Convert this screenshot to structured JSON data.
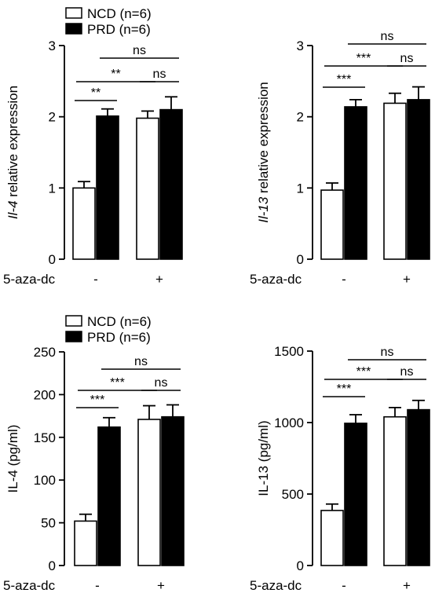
{
  "colors": {
    "ncd": "#ffffff",
    "prd": "#000000",
    "stroke": "#000000"
  },
  "chart_data": [
    {
      "type": "bar",
      "ylabel_italic": "Il-4",
      "ylabel_rest": " relative expression",
      "ylim": [
        0,
        3
      ],
      "yticks": [
        "0",
        "1",
        "2",
        "3"
      ],
      "treatment_label": "5-aza-dc",
      "categories": [
        "-",
        "+"
      ],
      "legend": [
        "NCD (n=6)",
        "PRD (n=6)"
      ],
      "series": [
        {
          "name": "NCD (n=6)",
          "values": [
            1.0,
            1.98
          ],
          "errors": [
            0.09,
            0.1
          ]
        },
        {
          "name": "PRD (n=6)",
          "values": [
            2.01,
            2.1
          ],
          "errors": [
            0.1,
            0.18
          ]
        }
      ],
      "annotations": [
        {
          "text": "**",
          "from": [
            0,
            0
          ],
          "to": [
            0,
            1
          ],
          "level": 0
        },
        {
          "text": "**",
          "from": [
            0,
            0
          ],
          "to": [
            1,
            0
          ],
          "level": 1
        },
        {
          "text": "ns",
          "from": [
            1,
            0
          ],
          "to": [
            1,
            1
          ],
          "level": 1
        },
        {
          "text": "ns",
          "from": [
            0,
            1
          ],
          "to": [
            1,
            1
          ],
          "level": 2
        }
      ]
    },
    {
      "type": "bar",
      "ylabel_italic": "Il-13",
      "ylabel_rest": " relative expression",
      "ylim": [
        0,
        3
      ],
      "yticks": [
        "0",
        "1",
        "2",
        "3"
      ],
      "treatment_label": "5-aza-dc",
      "categories": [
        "-",
        "+"
      ],
      "legend": [],
      "series": [
        {
          "name": "NCD (n=6)",
          "values": [
            0.97,
            2.19
          ],
          "errors": [
            0.1,
            0.14
          ]
        },
        {
          "name": "PRD (n=6)",
          "values": [
            2.14,
            2.24
          ],
          "errors": [
            0.1,
            0.18
          ]
        }
      ],
      "annotations": [
        {
          "text": "***",
          "from": [
            0,
            0
          ],
          "to": [
            0,
            1
          ],
          "level": 0
        },
        {
          "text": "***",
          "from": [
            0,
            0
          ],
          "to": [
            1,
            0
          ],
          "level": 1
        },
        {
          "text": "ns",
          "from": [
            1,
            0
          ],
          "to": [
            1,
            1
          ],
          "level": 1
        },
        {
          "text": "ns",
          "from": [
            0,
            1
          ],
          "to": [
            1,
            1
          ],
          "level": 2
        }
      ]
    },
    {
      "type": "bar",
      "ylabel_italic": "",
      "ylabel_rest": "IL-4 (pg/ml)",
      "ylim": [
        0,
        250
      ],
      "yticks": [
        "0",
        "50",
        "100",
        "150",
        "200",
        "250"
      ],
      "treatment_label": "5-aza-dc",
      "categories": [
        "-",
        "+"
      ],
      "legend": [
        "NCD (n=6)",
        "PRD (n=6)"
      ],
      "series": [
        {
          "name": "NCD (n=6)",
          "values": [
            52,
            171
          ],
          "errors": [
            8,
            16
          ]
        },
        {
          "name": "PRD (n=6)",
          "values": [
            162,
            174
          ],
          "errors": [
            11,
            14
          ]
        }
      ],
      "annotations": [
        {
          "text": "***",
          "from": [
            0,
            0
          ],
          "to": [
            0,
            1
          ],
          "level": 0
        },
        {
          "text": "***",
          "from": [
            0,
            0
          ],
          "to": [
            1,
            0
          ],
          "level": 1
        },
        {
          "text": "ns",
          "from": [
            1,
            0
          ],
          "to": [
            1,
            1
          ],
          "level": 1
        },
        {
          "text": "ns",
          "from": [
            0,
            1
          ],
          "to": [
            1,
            1
          ],
          "level": 2
        }
      ]
    },
    {
      "type": "bar",
      "ylabel_italic": "",
      "ylabel_rest": "IL-13 (pg/ml)",
      "ylim": [
        0,
        1500
      ],
      "yticks": [
        "0",
        "500",
        "1000",
        "1500"
      ],
      "treatment_label": "5-aza-dc",
      "categories": [
        "-",
        "+"
      ],
      "legend": [],
      "series": [
        {
          "name": "NCD (n=6)",
          "values": [
            385,
            1040
          ],
          "errors": [
            45,
            65
          ]
        },
        {
          "name": "PRD (n=6)",
          "values": [
            995,
            1090
          ],
          "errors": [
            60,
            65
          ]
        }
      ],
      "annotations": [
        {
          "text": "***",
          "from": [
            0,
            0
          ],
          "to": [
            0,
            1
          ],
          "level": 0
        },
        {
          "text": "***",
          "from": [
            0,
            0
          ],
          "to": [
            1,
            0
          ],
          "level": 1
        },
        {
          "text": "ns",
          "from": [
            1,
            0
          ],
          "to": [
            1,
            1
          ],
          "level": 1
        },
        {
          "text": "ns",
          "from": [
            0,
            1
          ],
          "to": [
            1,
            1
          ],
          "level": 2
        }
      ]
    }
  ]
}
